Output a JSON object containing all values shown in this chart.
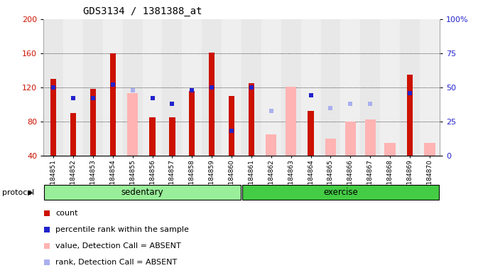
{
  "title": "GDS3134 / 1381388_at",
  "samples": [
    "GSM184851",
    "GSM184852",
    "GSM184853",
    "GSM184854",
    "GSM184855",
    "GSM184856",
    "GSM184857",
    "GSM184858",
    "GSM184859",
    "GSM184860",
    "GSM184861",
    "GSM184862",
    "GSM184863",
    "GSM184864",
    "GSM184865",
    "GSM184866",
    "GSM184867",
    "GSM184868",
    "GSM184869",
    "GSM184870"
  ],
  "count": [
    130,
    90,
    118,
    160,
    null,
    85,
    85,
    116,
    161,
    110,
    125,
    null,
    null,
    92,
    null,
    null,
    null,
    null,
    135,
    null
  ],
  "absent_value": [
    null,
    null,
    null,
    null,
    113,
    null,
    null,
    null,
    null,
    null,
    null,
    65,
    121,
    null,
    60,
    80,
    82,
    55,
    null,
    55
  ],
  "percentile_rank_pct": [
    50,
    42,
    42,
    52,
    null,
    42,
    38,
    48,
    50,
    18,
    50,
    null,
    null,
    44,
    null,
    null,
    null,
    null,
    46,
    null
  ],
  "absent_rank_pct": [
    null,
    null,
    null,
    null,
    48,
    null,
    null,
    null,
    null,
    null,
    null,
    33,
    null,
    null,
    35,
    38,
    38,
    null,
    null,
    null
  ],
  "sedentary_count": 10,
  "exercise_count": 10,
  "ylim": [
    40,
    200
  ],
  "y2lim": [
    0,
    100
  ],
  "yticks": [
    40,
    80,
    120,
    160,
    200
  ],
  "y2ticks": [
    0,
    25,
    50,
    75,
    100
  ],
  "bar_color_count": "#cc1100",
  "bar_color_absent": "#ffb3b3",
  "sq_color_rank": "#2222cc",
  "sq_color_absent_rank": "#aab0ee",
  "protocol_sed_color": "#99ee99",
  "protocol_ex_color": "#44cc44",
  "protocol_label_sed": "sedentary",
  "protocol_label_ex": "exercise",
  "protocol_label": "protocol"
}
